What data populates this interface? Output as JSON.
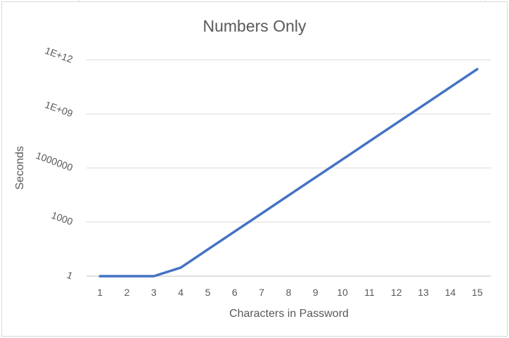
{
  "chart_data": {
    "type": "line",
    "title": "Numbers Only",
    "xlabel": "Characters in Password",
    "ylabel": "Seconds",
    "x_scale": "category",
    "y_scale": "log10",
    "ylim": [
      1,
      1000000000000
    ],
    "y_ticks": [
      1,
      1000,
      1000000,
      1000000000,
      1000000000000
    ],
    "y_tick_labels": [
      "1",
      "1000",
      "1000000",
      "1E+09",
      "1E+12"
    ],
    "categories": [
      "1",
      "2",
      "3",
      "4",
      "5",
      "6",
      "7",
      "8",
      "9",
      "10",
      "11",
      "12",
      "13",
      "14",
      "15"
    ],
    "series": [
      {
        "color": "#4472c4",
        "values": [
          1,
          1,
          1,
          3,
          30,
          300,
          3000,
          30000,
          300000,
          3000000,
          30000000,
          300000000,
          3000000000,
          30000000000,
          300000000000
        ]
      }
    ],
    "grid": true,
    "legend": "none"
  },
  "colors": {
    "line": "#4472c4",
    "gridline": "#d9d9d9",
    "axis": "#bfbfbf",
    "text": "#595959"
  }
}
